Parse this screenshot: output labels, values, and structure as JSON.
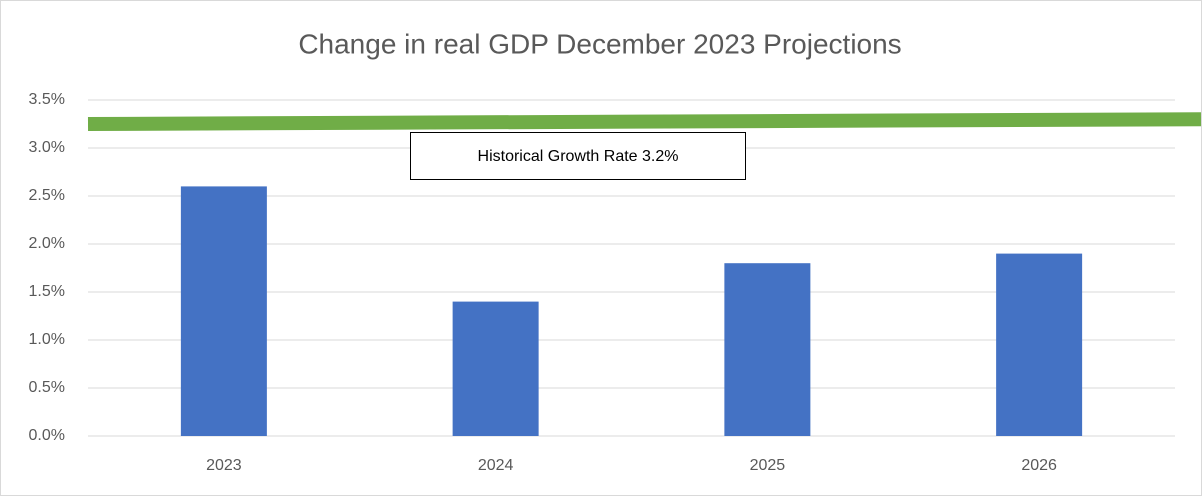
{
  "chart_data": {
    "type": "bar",
    "title": "Change in real GDP December 2023 Projections",
    "categories": [
      "2023",
      "2024",
      "2025",
      "2026"
    ],
    "values": [
      2.6,
      1.4,
      1.8,
      1.9
    ],
    "color": "#4472c4",
    "ylim": [
      0,
      3.5
    ],
    "yticks": [
      {
        "value": 0,
        "label": "0.0%"
      },
      {
        "value": 0.5,
        "label": "0.5%"
      },
      {
        "value": 1,
        "label": "1.0%"
      },
      {
        "value": 1.5,
        "label": "1.5%"
      },
      {
        "value": 2,
        "label": "2.0%"
      },
      {
        "value": 2.5,
        "label": "2.5%"
      },
      {
        "value": 3,
        "label": "3.0%"
      },
      {
        "value": 3.5,
        "label": "3.5%"
      }
    ],
    "grid": true,
    "reference_line": {
      "start": 3.25,
      "end": 3.3,
      "color": "#70ad47"
    },
    "annotation": "Historical Growth Rate 3.2%"
  }
}
